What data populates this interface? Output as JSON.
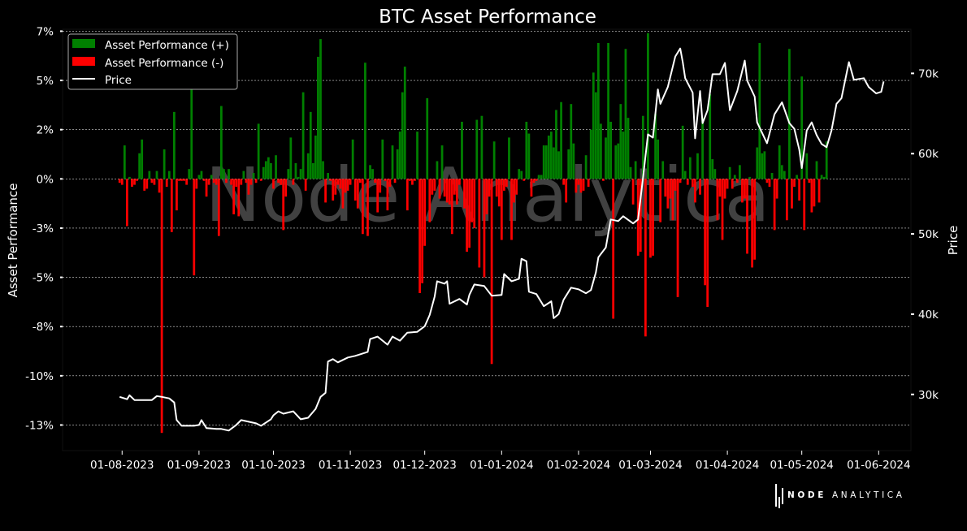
{
  "chart_data": {
    "type": "bar+line",
    "title": "BTC Asset Performance",
    "ylabel_left": "Asset Performance",
    "ylabel_right": "Price",
    "watermark": "Node Analytica",
    "brand": {
      "bold": "NODE",
      "light": "ANALYTICA"
    },
    "legend": {
      "placement": "upper-left",
      "entries": [
        "Asset Performance (+)",
        "Asset Performance (-)",
        "Price"
      ]
    },
    "colors": {
      "positive": "#008000",
      "negative": "#ff0000",
      "price": "#ffffff",
      "background": "#000000",
      "grid": "#d9d9d9"
    },
    "grid": true,
    "x_range": [
      "2023-07-08",
      "2024-06-14"
    ],
    "left_ylim": [
      -13.8,
      7.6
    ],
    "right_ylim": [
      23000,
      75500
    ],
    "left_ticks": [
      {
        "value": 7.5,
        "label": "7%"
      },
      {
        "value": 5,
        "label": "5%"
      },
      {
        "value": 2.5,
        "label": "2%"
      },
      {
        "value": 0,
        "label": "0%"
      },
      {
        "value": -2.5,
        "label": "-3%"
      },
      {
        "value": -5,
        "label": "-5%"
      },
      {
        "value": -7.5,
        "label": "-8%"
      },
      {
        "value": -10,
        "label": "-10%"
      },
      {
        "value": -12.5,
        "label": "-13%"
      }
    ],
    "right_ticks": [
      {
        "value": 30000,
        "label": "30k"
      },
      {
        "value": 40000,
        "label": "40k"
      },
      {
        "value": 50000,
        "label": "50k"
      },
      {
        "value": 60000,
        "label": "60k"
      },
      {
        "value": 70000,
        "label": "70k"
      }
    ],
    "x_ticks": [
      {
        "date": "2023-08-01",
        "label": "01-08-2023"
      },
      {
        "date": "2023-09-01",
        "label": "01-09-2023"
      },
      {
        "date": "2023-10-01",
        "label": "01-10-2023"
      },
      {
        "date": "2023-11-01",
        "label": "01-11-2023"
      },
      {
        "date": "2023-12-01",
        "label": "01-12-2023"
      },
      {
        "date": "2024-01-01",
        "label": "01-01-2024"
      },
      {
        "date": "2024-02-01",
        "label": "01-02-2024"
      },
      {
        "date": "2024-03-01",
        "label": "01-03-2024"
      },
      {
        "date": "2024-04-01",
        "label": "01-04-2024"
      },
      {
        "date": "2024-05-01",
        "label": "01-05-2024"
      },
      {
        "date": "2024-06-01",
        "label": "01-06-2024"
      }
    ],
    "bars": {
      "start_date": "2023-07-31",
      "values": [
        -0.2,
        -0.3,
        1.7,
        -2.4,
        0.1,
        -0.4,
        -0.3,
        -0.1,
        1.3,
        2.0,
        -0.6,
        -0.5,
        0.4,
        -0.2,
        -0.3,
        0.4,
        -0.7,
        -12.9,
        1.5,
        -0.4,
        0.4,
        -2.7,
        3.4,
        -1.6,
        -0.1,
        -0.1,
        -0.1,
        -0.3,
        0.5,
        6.8,
        -4.9,
        -0.5,
        0.2,
        0.4,
        -0.1,
        -0.9,
        -0.3,
        0.2,
        -0.2,
        -0.3,
        -2.9,
        3.7,
        0.5,
        -0.2,
        0.5,
        -0.3,
        -1.8,
        -0.4,
        -1.9,
        -0.3,
        0.4,
        -0.2,
        -0.8,
        -0.3,
        0.3,
        -0.2,
        2.8,
        -0.1,
        0.6,
        0.9,
        1.1,
        0.8,
        -0.5,
        1.2,
        -0.2,
        -0.3,
        -2.6,
        -0.9,
        0.5,
        2.1,
        -0.3,
        0.8,
        0.1,
        0.5,
        4.4,
        -0.6,
        1.3,
        3.4,
        0.8,
        2.2,
        6.2,
        7.1,
        0.9,
        -1.2,
        0.3,
        -0.1,
        -1.1,
        -0.8,
        -0.3,
        -0.5,
        -1.5,
        -0.7,
        -0.6,
        -0.3,
        2.0,
        -1.1,
        -1.5,
        -0.2,
        -2.8,
        5.9,
        -2.9,
        0.7,
        0.5,
        -0.2,
        -1.7,
        -0.7,
        2.0,
        -0.1,
        -1.6,
        -0.4,
        1.7,
        -0.2,
        1.5,
        2.4,
        4.4,
        5.7,
        -1.6,
        -0.1,
        -0.3,
        -0.1,
        2.4,
        -5.8,
        -5.3,
        -3.4,
        4.1,
        -2.2,
        -0.8,
        -0.6,
        0.9,
        -1.0,
        1.7,
        -0.9,
        -1.2,
        -1.3,
        -2.8,
        -0.8,
        -1.3,
        -0.3,
        2.9,
        -1.5,
        -3.7,
        -3.5,
        -2.2,
        -2.5,
        3.0,
        -4.5,
        3.2,
        -5.0,
        -1.8,
        -0.9,
        -9.4,
        1.9,
        -0.9,
        -1.4,
        -3.1,
        -0.6,
        -0.4,
        2.1,
        -3.1,
        -1.2,
        -0.8,
        0.5,
        0.4,
        -0.1,
        2.9,
        2.3,
        -0.9,
        -0.2,
        -0.1,
        0.2,
        0.2,
        1.7,
        1.7,
        2.2,
        2.4,
        1.6,
        3.5,
        1.4,
        3.9,
        -0.3,
        -1.2,
        1.5,
        3.8,
        1.8,
        -0.7,
        -0.3,
        -0.7,
        -0.6,
        1.2,
        -0.4,
        2.5,
        5.4,
        4.4,
        6.9,
        2.8,
        -0.1,
        2.1,
        6.9,
        2.9,
        -7.1,
        1.7,
        1.8,
        3.8,
        2.4,
        6.6,
        3.1,
        0.6,
        -1.3,
        0.9,
        -3.9,
        -3.7,
        3.2,
        -8.0,
        7.4,
        -4.0,
        -3.9,
        3.3,
        2.0,
        -2.2,
        0.9,
        -0.9,
        -1.5,
        -1.0,
        -2.1,
        -0.6,
        -6.0,
        -0.2,
        2.7,
        0.4,
        -0.3,
        1.1,
        -0.4,
        -1.2,
        1.3,
        -0.8,
        3.1,
        -5.4,
        -6.5,
        4.3,
        1.0,
        0.5,
        -2.1,
        -0.9,
        -3.1,
        -1.0,
        -0.5,
        0.6,
        -0.5,
        0.2,
        -0.2,
        0.7,
        -1.2,
        -1.0,
        -3.8,
        0.1,
        -4.5,
        -4.1,
        1.6,
        6.9,
        1.3,
        1.4,
        -0.2,
        -0.4,
        0.3,
        -2.6,
        -1.0,
        1.7,
        0.7,
        0.4,
        -2.1,
        6.6,
        -1.5,
        -0.4,
        0.2,
        -1.1,
        5.2,
        -2.6,
        1.3,
        -0.2,
        -1.7,
        -1.4,
        0.9,
        -1.2,
        0.2,
        0.1,
        1.9
      ]
    },
    "price": {
      "points": [
        {
          "date": "2023-07-31",
          "price": 29700
        },
        {
          "date": "2023-08-03",
          "price": 29400
        },
        {
          "date": "2023-08-04",
          "price": 29900
        },
        {
          "date": "2023-08-06",
          "price": 29300
        },
        {
          "date": "2023-08-13",
          "price": 29300
        },
        {
          "date": "2023-08-15",
          "price": 29800
        },
        {
          "date": "2023-08-17",
          "price": 29700
        },
        {
          "date": "2023-08-20",
          "price": 29500
        },
        {
          "date": "2023-08-22",
          "price": 29000
        },
        {
          "date": "2023-08-23",
          "price": 26800
        },
        {
          "date": "2023-08-25",
          "price": 26100
        },
        {
          "date": "2023-08-30",
          "price": 26100
        },
        {
          "date": "2023-09-01",
          "price": 26200
        },
        {
          "date": "2023-09-02",
          "price": 26800
        },
        {
          "date": "2023-09-04",
          "price": 25800
        },
        {
          "date": "2023-09-08",
          "price": 25700
        },
        {
          "date": "2023-09-10",
          "price": 25700
        },
        {
          "date": "2023-09-13",
          "price": 25500
        },
        {
          "date": "2023-09-16",
          "price": 26200
        },
        {
          "date": "2023-09-18",
          "price": 26800
        },
        {
          "date": "2023-09-24",
          "price": 26400
        },
        {
          "date": "2023-09-26",
          "price": 26100
        },
        {
          "date": "2023-09-30",
          "price": 26900
        },
        {
          "date": "2023-10-01",
          "price": 27400
        },
        {
          "date": "2023-10-03",
          "price": 27900
        },
        {
          "date": "2023-10-05",
          "price": 27600
        },
        {
          "date": "2023-10-09",
          "price": 27900
        },
        {
          "date": "2023-10-12",
          "price": 26900
        },
        {
          "date": "2023-10-15",
          "price": 27100
        },
        {
          "date": "2023-10-18",
          "price": 28200
        },
        {
          "date": "2023-10-20",
          "price": 29700
        },
        {
          "date": "2023-10-22",
          "price": 30200
        },
        {
          "date": "2023-10-23",
          "price": 34100
        },
        {
          "date": "2023-10-25",
          "price": 34400
        },
        {
          "date": "2023-10-27",
          "price": 34000
        },
        {
          "date": "2023-10-31",
          "price": 34600
        },
        {
          "date": "2023-11-03",
          "price": 34800
        },
        {
          "date": "2023-11-08",
          "price": 35300
        },
        {
          "date": "2023-11-09",
          "price": 36900
        },
        {
          "date": "2023-11-12",
          "price": 37200
        },
        {
          "date": "2023-11-16",
          "price": 36200
        },
        {
          "date": "2023-11-18",
          "price": 37200
        },
        {
          "date": "2023-11-21",
          "price": 36700
        },
        {
          "date": "2023-11-24",
          "price": 37700
        },
        {
          "date": "2023-11-28",
          "price": 37800
        },
        {
          "date": "2023-12-01",
          "price": 38500
        },
        {
          "date": "2023-12-03",
          "price": 39900
        },
        {
          "date": "2023-12-05",
          "price": 42200
        },
        {
          "date": "2023-12-06",
          "price": 44100
        },
        {
          "date": "2023-12-09",
          "price": 43800
        },
        {
          "date": "2023-12-10",
          "price": 44100
        },
        {
          "date": "2023-12-11",
          "price": 41300
        },
        {
          "date": "2023-12-15",
          "price": 41900
        },
        {
          "date": "2023-12-18",
          "price": 41200
        },
        {
          "date": "2023-12-19",
          "price": 42400
        },
        {
          "date": "2023-12-21",
          "price": 43700
        },
        {
          "date": "2023-12-25",
          "price": 43500
        },
        {
          "date": "2023-12-28",
          "price": 42300
        },
        {
          "date": "2024-01-01",
          "price": 42400
        },
        {
          "date": "2024-01-02",
          "price": 45000
        },
        {
          "date": "2024-01-05",
          "price": 44100
        },
        {
          "date": "2024-01-08",
          "price": 44400
        },
        {
          "date": "2024-01-09",
          "price": 46900
        },
        {
          "date": "2024-01-11",
          "price": 46600
        },
        {
          "date": "2024-01-12",
          "price": 42800
        },
        {
          "date": "2024-01-15",
          "price": 42500
        },
        {
          "date": "2024-01-18",
          "price": 41000
        },
        {
          "date": "2024-01-21",
          "price": 41600
        },
        {
          "date": "2024-01-22",
          "price": 39500
        },
        {
          "date": "2024-01-24",
          "price": 40000
        },
        {
          "date": "2024-01-26",
          "price": 41800
        },
        {
          "date": "2024-01-29",
          "price": 43300
        },
        {
          "date": "2024-02-01",
          "price": 43100
        },
        {
          "date": "2024-02-04",
          "price": 42600
        },
        {
          "date": "2024-02-06",
          "price": 43000
        },
        {
          "date": "2024-02-08",
          "price": 45200
        },
        {
          "date": "2024-02-09",
          "price": 47100
        },
        {
          "date": "2024-02-12",
          "price": 48300
        },
        {
          "date": "2024-02-14",
          "price": 51800
        },
        {
          "date": "2024-02-17",
          "price": 51600
        },
        {
          "date": "2024-02-19",
          "price": 52200
        },
        {
          "date": "2024-02-23",
          "price": 51300
        },
        {
          "date": "2024-02-25",
          "price": 51800
        },
        {
          "date": "2024-02-27",
          "price": 57000
        },
        {
          "date": "2024-02-29",
          "price": 62400
        },
        {
          "date": "2024-03-02",
          "price": 62000
        },
        {
          "date": "2024-03-04",
          "price": 68000
        },
        {
          "date": "2024-03-05",
          "price": 66200
        },
        {
          "date": "2024-03-06",
          "price": 66900
        },
        {
          "date": "2024-03-08",
          "price": 68300
        },
        {
          "date": "2024-03-11",
          "price": 72100
        },
        {
          "date": "2024-03-13",
          "price": 73100
        },
        {
          "date": "2024-03-14",
          "price": 71400
        },
        {
          "date": "2024-03-15",
          "price": 69400
        },
        {
          "date": "2024-03-18",
          "price": 67600
        },
        {
          "date": "2024-03-19",
          "price": 61900
        },
        {
          "date": "2024-03-21",
          "price": 67800
        },
        {
          "date": "2024-03-22",
          "price": 63800
        },
        {
          "date": "2024-03-24",
          "price": 65400
        },
        {
          "date": "2024-03-26",
          "price": 69900
        },
        {
          "date": "2024-03-29",
          "price": 69900
        },
        {
          "date": "2024-03-31",
          "price": 71300
        },
        {
          "date": "2024-04-02",
          "price": 65400
        },
        {
          "date": "2024-04-05",
          "price": 67800
        },
        {
          "date": "2024-04-08",
          "price": 71600
        },
        {
          "date": "2024-04-09",
          "price": 69100
        },
        {
          "date": "2024-04-12",
          "price": 67100
        },
        {
          "date": "2024-04-13",
          "price": 63900
        },
        {
          "date": "2024-04-17",
          "price": 61300
        },
        {
          "date": "2024-04-20",
          "price": 64900
        },
        {
          "date": "2024-04-23",
          "price": 66400
        },
        {
          "date": "2024-04-26",
          "price": 63800
        },
        {
          "date": "2024-04-28",
          "price": 63100
        },
        {
          "date": "2024-04-30",
          "price": 60500
        },
        {
          "date": "2024-05-01",
          "price": 58200
        },
        {
          "date": "2024-05-03",
          "price": 62900
        },
        {
          "date": "2024-05-05",
          "price": 63900
        },
        {
          "date": "2024-05-07",
          "price": 62300
        },
        {
          "date": "2024-05-09",
          "price": 61200
        },
        {
          "date": "2024-05-11",
          "price": 60800
        },
        {
          "date": "2024-05-13",
          "price": 62900
        },
        {
          "date": "2024-05-15",
          "price": 66200
        },
        {
          "date": "2024-05-17",
          "price": 66900
        },
        {
          "date": "2024-05-20",
          "price": 71400
        },
        {
          "date": "2024-05-22",
          "price": 69200
        },
        {
          "date": "2024-05-24",
          "price": 69300
        },
        {
          "date": "2024-05-26",
          "price": 69400
        },
        {
          "date": "2024-05-28",
          "price": 68300
        },
        {
          "date": "2024-05-31",
          "price": 67500
        },
        {
          "date": "2024-06-02",
          "price": 67700
        },
        {
          "date": "2024-06-03",
          "price": 69000
        }
      ]
    }
  }
}
